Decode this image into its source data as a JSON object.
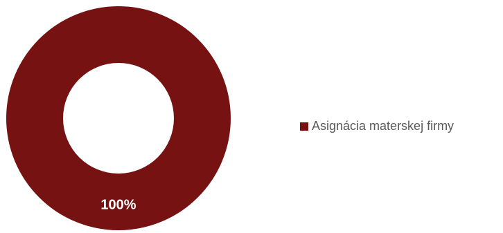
{
  "chart_data": {
    "type": "pie",
    "variant": "donut",
    "title": "",
    "slices": [
      {
        "name": "Asignácia materskej firmy",
        "value": 100,
        "label": "100%",
        "color": "#761212"
      }
    ],
    "legend": {
      "placement": "right",
      "entries": [
        "Asignácia materskej firmy"
      ]
    }
  }
}
